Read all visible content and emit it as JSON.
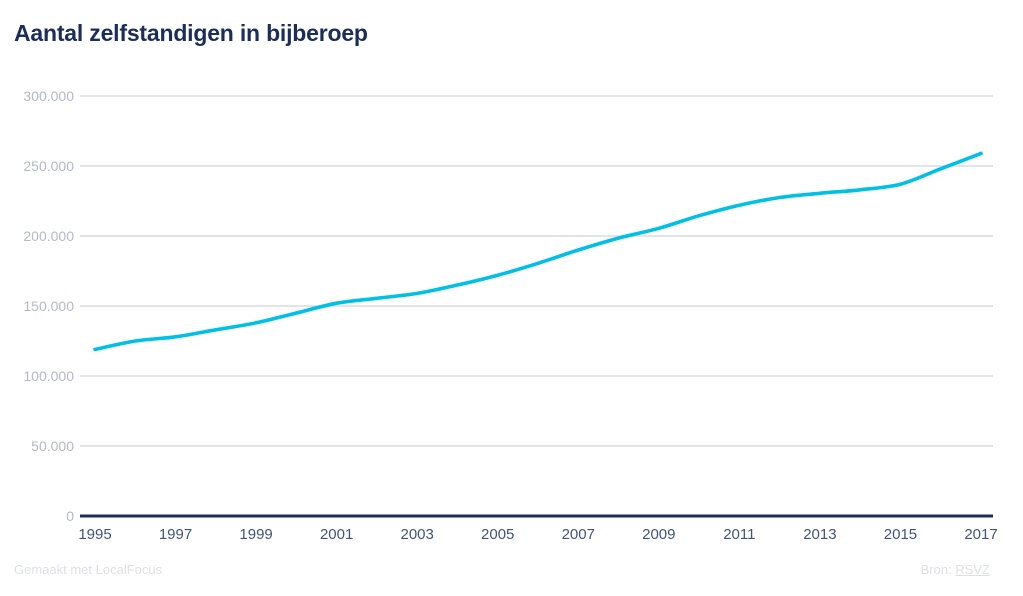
{
  "title": "Aantal zelfstandigen in bijberoep",
  "footer": {
    "credit": "Gemaakt met LocalFocus",
    "source_label": "Bron:",
    "source_link_text": "RSVZ"
  },
  "colors": {
    "line": "#00c0e6",
    "title": "#1b2d5a",
    "axis": "#1b2d5a",
    "grid": "#d9dbe0",
    "y_tick_label": "#b3b9c8",
    "x_tick_label": "#41547c",
    "footer_text": "#dde0e7",
    "background": "#ffffff"
  },
  "chart_data": {
    "type": "line",
    "title": "Aantal zelfstandigen in bijberoep",
    "xlabel": "",
    "ylabel": "",
    "x": [
      1995,
      1996,
      1997,
      1998,
      1999,
      2000,
      2001,
      2002,
      2003,
      2004,
      2005,
      2006,
      2007,
      2008,
      2009,
      2010,
      2011,
      2012,
      2013,
      2014,
      2015,
      2016,
      2017
    ],
    "series": [
      {
        "name": "Aantal zelfstandigen in bijberoep",
        "values": [
          119000,
          125000,
          128000,
          133000,
          138000,
          145000,
          152000,
          155500,
          159000,
          165000,
          172000,
          180500,
          190000,
          198500,
          205500,
          214500,
          222000,
          227500,
          230500,
          233000,
          237000,
          248000,
          259000
        ]
      }
    ],
    "ylim": [
      0,
      300000
    ],
    "ytick_step": 50000,
    "ytick_labels": [
      "300.000",
      "250.000",
      "200.000",
      "150.000",
      "100.000",
      "50.000",
      "0"
    ],
    "xtick_labels": [
      "1995",
      "1997",
      "1999",
      "2001",
      "2003",
      "2005",
      "2007",
      "2009",
      "2011",
      "2013",
      "2015",
      "2017"
    ],
    "grid": "horizontal-only",
    "legend": "none"
  }
}
